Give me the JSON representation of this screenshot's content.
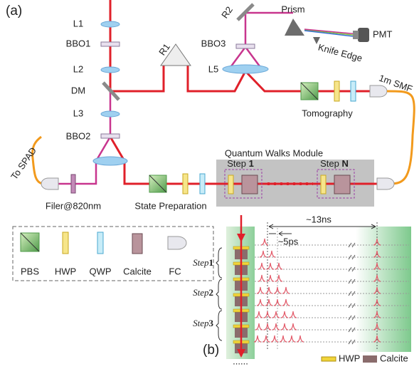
{
  "panel_a": {
    "label": "(a)",
    "labels": [
      "L1",
      "BBO1",
      "L2",
      "DM",
      "L3",
      "BBO2",
      "R1",
      "R2",
      "Prism",
      "PMT",
      "Knife Edge",
      "BBO3",
      "L5",
      "Tomography",
      "1m SMF",
      "To SPAD",
      "Filer@820nm",
      "State Preparation",
      "Quantum Walks Module"
    ],
    "steps": [
      {
        "word": "Step",
        "index": "1"
      },
      {
        "word": "Step",
        "index": "N"
      }
    ]
  },
  "legend": {
    "items": [
      "PBS",
      "HWP",
      "QWP",
      "Calcite",
      "FC"
    ]
  },
  "panel_b": {
    "label": "(b)",
    "period": "~13ns",
    "spacing": "~5ps",
    "steps": [
      {
        "word": "Step",
        "index": "1"
      },
      {
        "word": "Step",
        "index": "2"
      },
      {
        "word": "Step",
        "index": "3"
      }
    ],
    "legend": [
      "HWP",
      "Calcite"
    ],
    "ellipsis": "......"
  }
}
